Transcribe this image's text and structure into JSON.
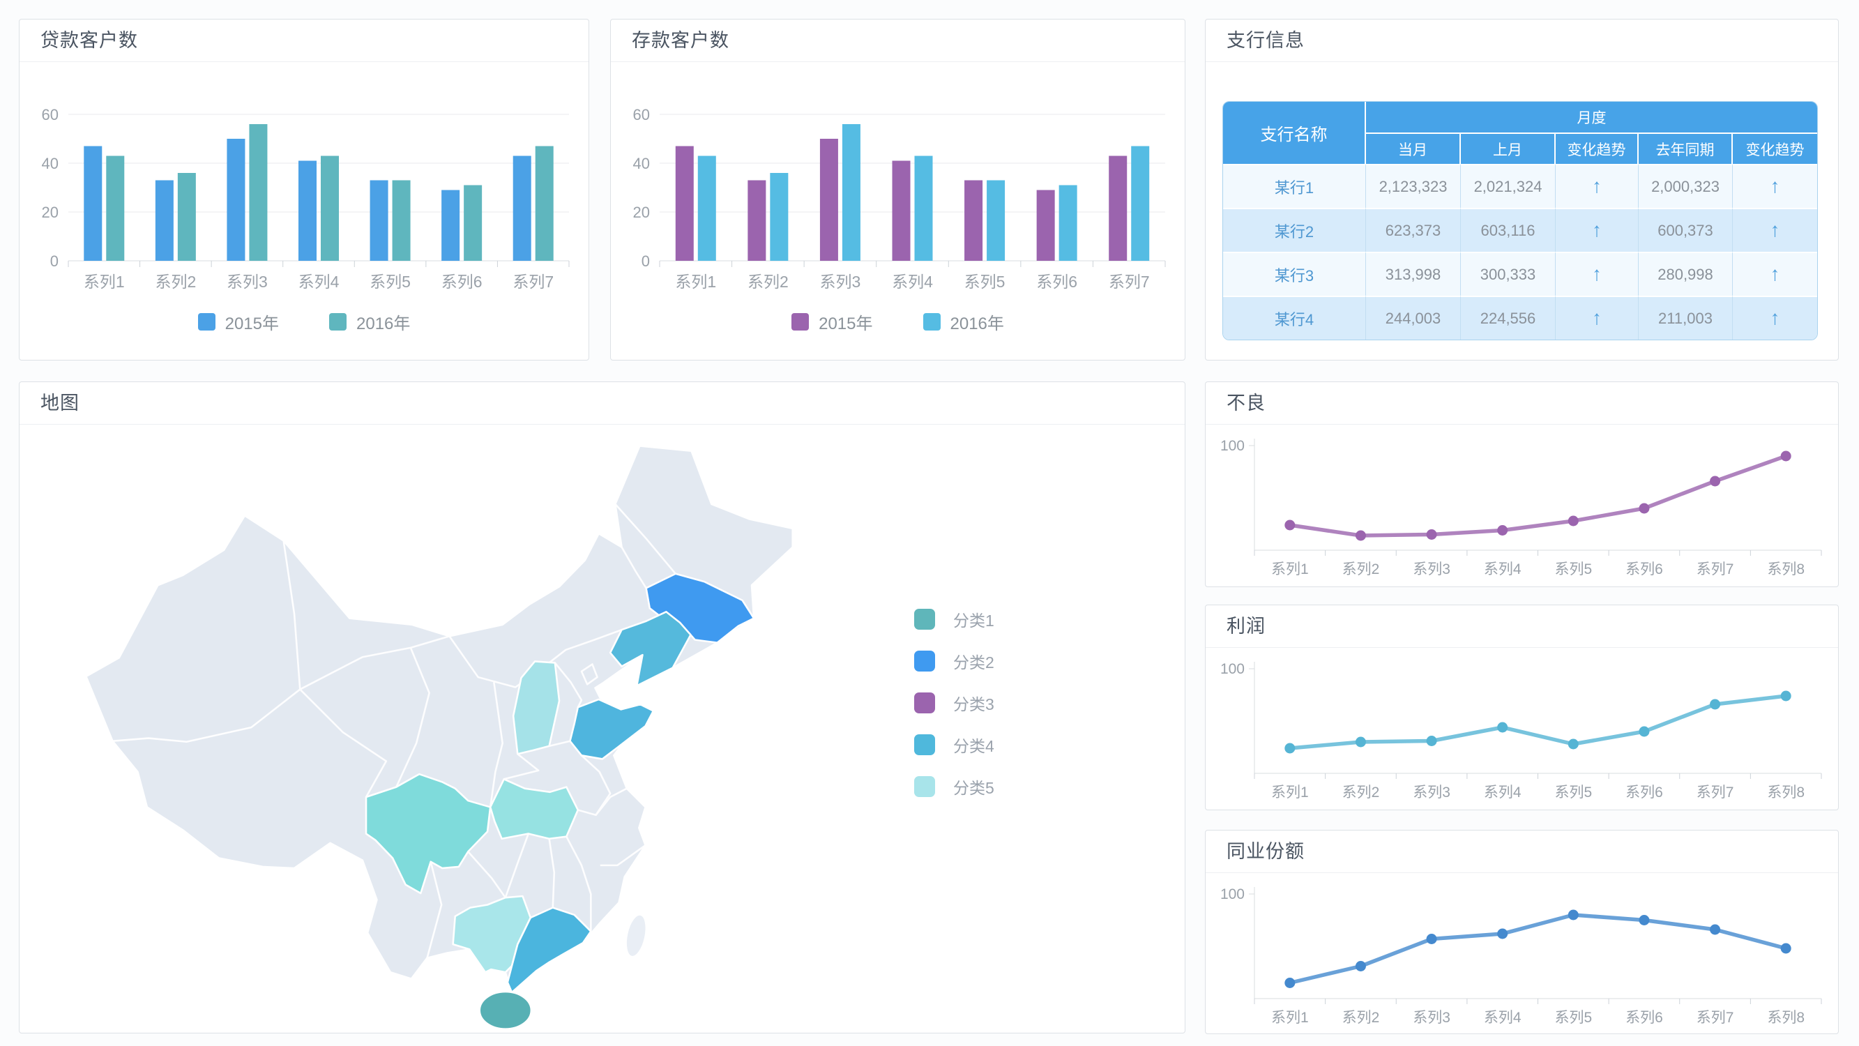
{
  "panels": {
    "loan": {
      "title": "贷款客户数"
    },
    "deposit": {
      "title": "存款客户数"
    },
    "branch": {
      "title": "支行信息"
    },
    "map": {
      "title": "地图"
    },
    "npl": {
      "title": "不良"
    },
    "profit": {
      "title": "利润"
    },
    "share": {
      "title": "同业份额"
    }
  },
  "chart_data": [
    {
      "id": "loan",
      "type": "bar",
      "title": "贷款客户数",
      "categories": [
        "系列1",
        "系列2",
        "系列3",
        "系列4",
        "系列5",
        "系列6",
        "系列7"
      ],
      "series": [
        {
          "name": "2015年",
          "color": "#4BA1E6",
          "values": [
            47,
            33,
            50,
            41,
            33,
            29,
            43
          ]
        },
        {
          "name": "2016年",
          "color": "#5FB6BE",
          "values": [
            43,
            36,
            56,
            43,
            33,
            31,
            47
          ]
        }
      ],
      "ylim": [
        0,
        60
      ],
      "yticks": [
        0,
        20,
        40,
        60
      ],
      "grid": true,
      "legend_position": "bottom"
    },
    {
      "id": "deposit",
      "type": "bar",
      "title": "存款客户数",
      "categories": [
        "系列1",
        "系列2",
        "系列3",
        "系列4",
        "系列5",
        "系列6",
        "系列7"
      ],
      "series": [
        {
          "name": "2015年",
          "color": "#9B64AE",
          "values": [
            47,
            33,
            50,
            41,
            33,
            29,
            43
          ]
        },
        {
          "name": "2016年",
          "color": "#55BCE3",
          "values": [
            43,
            36,
            56,
            43,
            33,
            31,
            47
          ]
        }
      ],
      "ylim": [
        0,
        60
      ],
      "yticks": [
        0,
        20,
        40,
        60
      ],
      "grid": true,
      "legend_position": "bottom"
    },
    {
      "id": "npl",
      "type": "line",
      "title": "不良",
      "categories": [
        "系列1",
        "系列2",
        "系列3",
        "系列4",
        "系列5",
        "系列6",
        "系列7",
        "系列8"
      ],
      "color": "#9B64AE",
      "values": [
        24,
        14,
        15,
        19,
        28,
        40,
        66,
        90
      ],
      "ylim": [
        0,
        100
      ],
      "yticks": [
        100
      ],
      "grid": false
    },
    {
      "id": "profit",
      "type": "line",
      "title": "利润",
      "categories": [
        "系列1",
        "系列2",
        "系列3",
        "系列4",
        "系列5",
        "系列6",
        "系列7",
        "系列8"
      ],
      "color": "#55B4D4",
      "values": [
        24,
        30,
        31,
        44,
        28,
        40,
        66,
        74
      ],
      "ylim": [
        0,
        100
      ],
      "yticks": [
        100
      ],
      "grid": false
    },
    {
      "id": "share",
      "type": "line",
      "title": "同业份额",
      "categories": [
        "系列1",
        "系列2",
        "系列3",
        "系列4",
        "系列5",
        "系列6",
        "系列7",
        "系列8"
      ],
      "color": "#4489CE",
      "values": [
        15,
        31,
        57,
        62,
        80,
        75,
        66,
        48
      ],
      "ylim": [
        0,
        100
      ],
      "yticks": [
        100
      ],
      "grid": false
    }
  ],
  "table": {
    "name_col": "支行名称",
    "group_col": "月度",
    "sub_cols": [
      "当月",
      "上月",
      "变化趋势",
      "去年同期",
      "变化趋势"
    ],
    "arrow_glyph": "↑",
    "rows": [
      {
        "name": "某行1",
        "cells": [
          "2,123,323",
          "2,021,324",
          "up",
          "2,000,323",
          "up"
        ]
      },
      {
        "name": "某行2",
        "cells": [
          "623,373",
          "603,116",
          "up",
          "600,373",
          "up"
        ]
      },
      {
        "name": "某行3",
        "cells": [
          "313,998",
          "300,333",
          "up",
          "280,998",
          "up"
        ]
      },
      {
        "name": "某行4",
        "cells": [
          "244,003",
          "224,556",
          "up",
          "211,003",
          "up"
        ]
      }
    ],
    "header_color": "#47A3E8",
    "row_color_light": "#F2F9FE",
    "row_color_dark": "#D7EBFB"
  },
  "map": {
    "legend": [
      {
        "label": "分类1",
        "color": "#5FB6BA"
      },
      {
        "label": "分类2",
        "color": "#3F9AF0"
      },
      {
        "label": "分类3",
        "color": "#9B64AE"
      },
      {
        "label": "分类4",
        "color": "#4FB8DC"
      },
      {
        "label": "分类5",
        "color": "#A8E4EA"
      }
    ],
    "regions": [
      {
        "id": "jilin",
        "color": "#3F9AF0"
      },
      {
        "id": "liaoning",
        "color": "#55B9DC"
      },
      {
        "id": "shanxi",
        "color": "#A5E2E8"
      },
      {
        "id": "shandong",
        "color": "#4FB5DE"
      },
      {
        "id": "sichuan",
        "color": "#7FDBDB"
      },
      {
        "id": "hubei",
        "color": "#96E2E2"
      },
      {
        "id": "guangxi",
        "color": "#A9E6EA"
      },
      {
        "id": "guangdong",
        "color": "#4BB5DE"
      },
      {
        "id": "hainan",
        "color": "#57B0B4"
      }
    ],
    "base_color": "#E3E9F1"
  }
}
